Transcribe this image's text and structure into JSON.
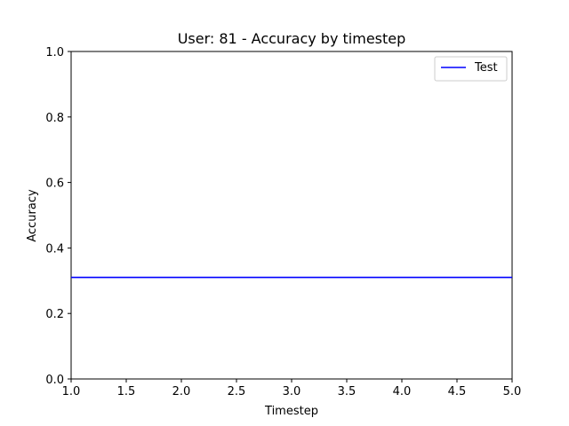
{
  "chart_data": {
    "type": "line",
    "title": "User: 81 - Accuracy by timestep",
    "xlabel": "Timestep",
    "ylabel": "Accuracy",
    "xlim": [
      1.0,
      5.0
    ],
    "ylim": [
      0.0,
      1.0
    ],
    "xticks": [
      "1.0",
      "1.5",
      "2.0",
      "2.5",
      "3.0",
      "3.5",
      "4.0",
      "4.5",
      "5.0"
    ],
    "yticks": [
      "0.0",
      "0.2",
      "0.4",
      "0.6",
      "0.8",
      "1.0"
    ],
    "grid": false,
    "legend_position": "top-right",
    "series": [
      {
        "name": "Test",
        "color": "#0000ff",
        "x": [
          1,
          2,
          3,
          4,
          5
        ],
        "y": [
          0.31,
          0.31,
          0.31,
          0.31,
          0.31
        ]
      }
    ]
  }
}
